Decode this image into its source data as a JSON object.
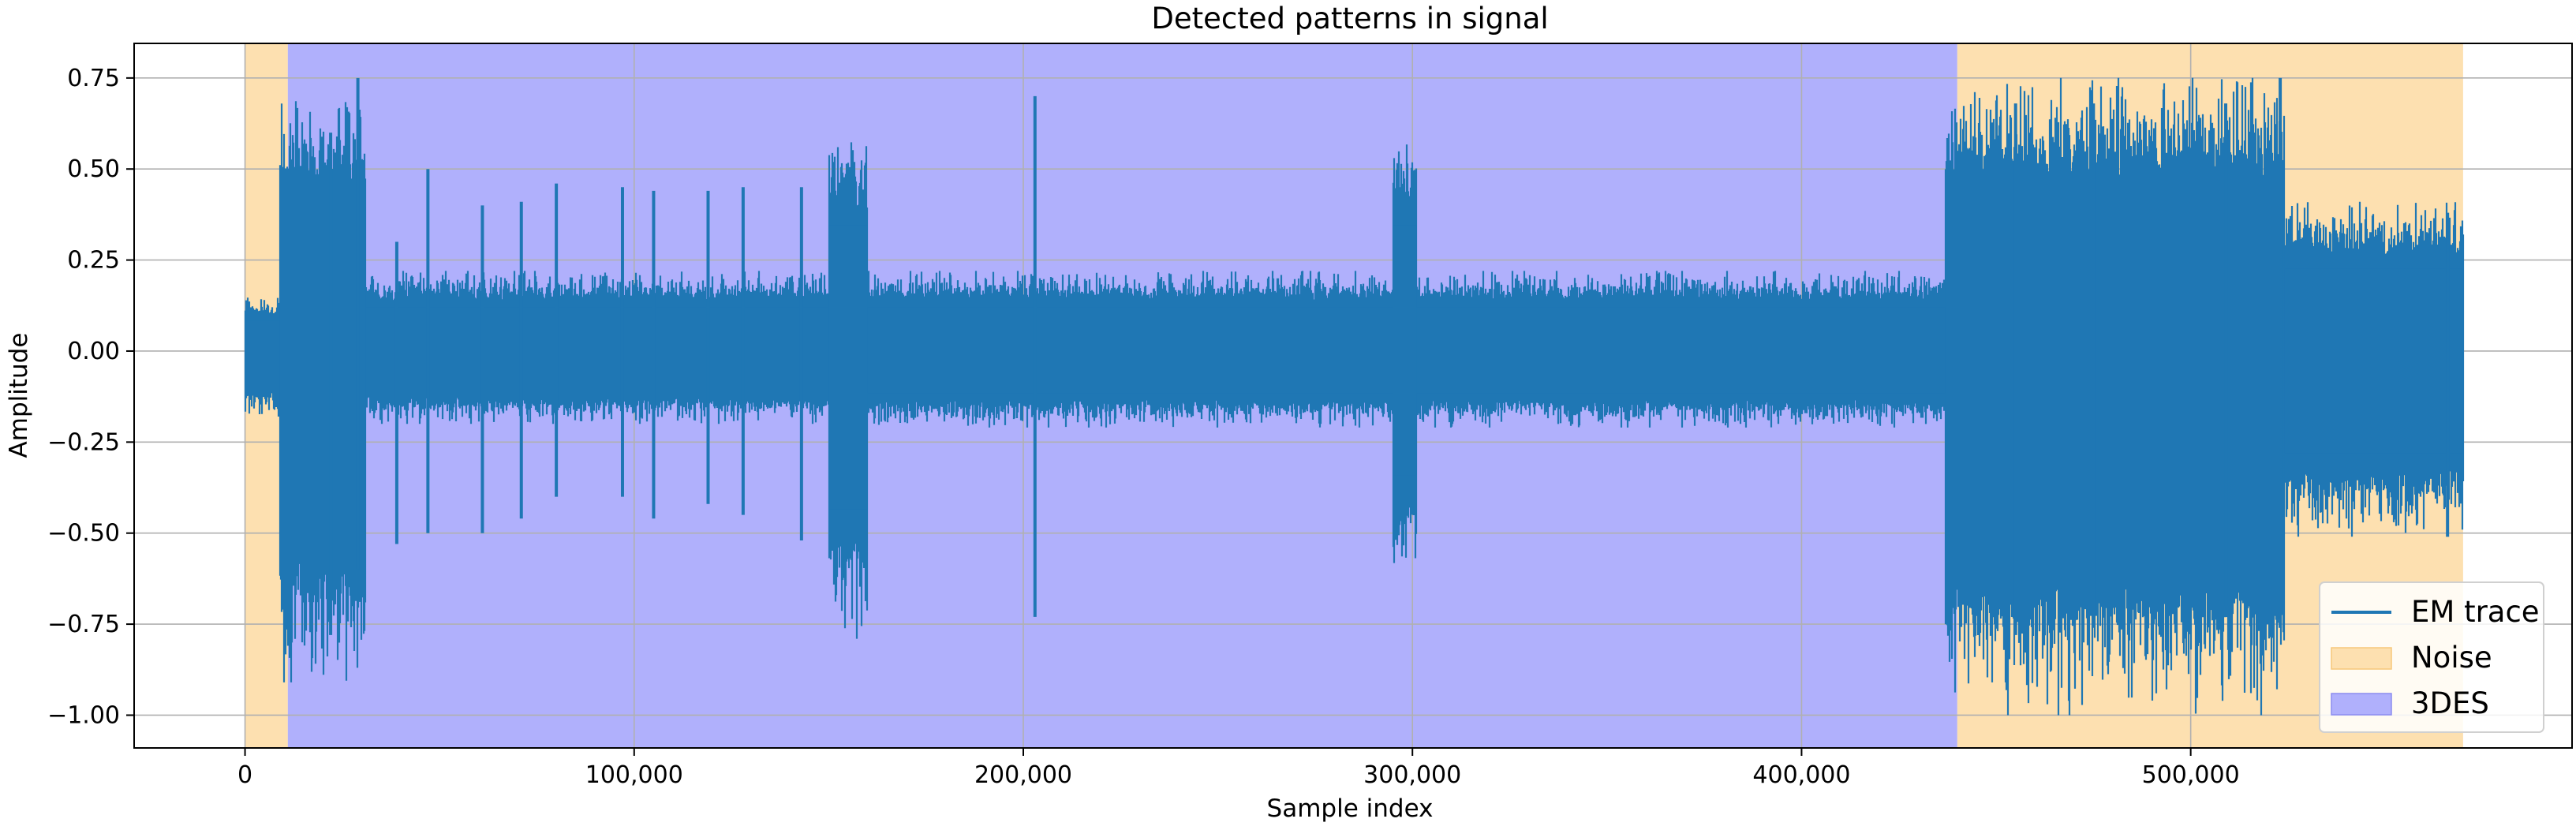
{
  "chart_data": {
    "type": "line",
    "title": "Detected patterns in signal",
    "xlabel": "Sample index",
    "ylabel": "Amplitude",
    "xlim": [
      -28500,
      598000
    ],
    "ylim": [
      -1.09,
      0.845
    ],
    "xticks": [
      0,
      100000,
      200000,
      300000,
      400000,
      500000
    ],
    "xtick_labels": [
      "0",
      "100,000",
      "200,000",
      "300,000",
      "400,000",
      "500,000"
    ],
    "yticks": [
      -1.0,
      -0.75,
      -0.5,
      -0.25,
      0.0,
      0.25,
      0.5,
      0.75
    ],
    "ytick_labels": [
      "−1.00",
      "−0.75",
      "−0.50",
      "−0.25",
      "0.00",
      "0.25",
      "0.50",
      "0.75"
    ],
    "grid": true,
    "legend_position": "lower-right",
    "series": [
      {
        "name": "EM trace",
        "kind": "line",
        "color": "#1f77b4",
        "segments": [
          {
            "x_start": 0,
            "x_end": 9000,
            "y_max": 0.15,
            "y_min": -0.18
          },
          {
            "x_start": 9000,
            "x_end": 31000,
            "y_max": 0.72,
            "y_min": -0.91
          },
          {
            "x_start": 31000,
            "x_end": 150000,
            "y_max": 0.22,
            "y_min": -0.2
          },
          {
            "x_start": 150000,
            "x_end": 160000,
            "y_max": 0.63,
            "y_min": -0.79
          },
          {
            "x_start": 160000,
            "x_end": 295000,
            "y_max": 0.22,
            "y_min": -0.21
          },
          {
            "x_start": 295000,
            "x_end": 301000,
            "y_max": 0.63,
            "y_min": -0.62
          },
          {
            "x_start": 301000,
            "x_end": 437000,
            "y_max": 0.22,
            "y_min": -0.21
          },
          {
            "x_start": 437000,
            "x_end": 524000,
            "y_max": 0.75,
            "y_min": -1.0
          },
          {
            "x_start": 524000,
            "x_end": 570000,
            "y_max": 0.41,
            "y_min": -0.51
          }
        ],
        "spikes": [
          {
            "x": 22000,
            "y_max": 0.6,
            "y_min": -0.78
          },
          {
            "x": 29000,
            "y_max": 0.75,
            "y_min": -0.6
          },
          {
            "x": 39000,
            "y_max": 0.3,
            "y_min": -0.53
          },
          {
            "x": 47000,
            "y_max": 0.5,
            "y_min": -0.5
          },
          {
            "x": 61000,
            "y_max": 0.4,
            "y_min": -0.5
          },
          {
            "x": 71000,
            "y_max": 0.41,
            "y_min": -0.46
          },
          {
            "x": 80000,
            "y_max": 0.46,
            "y_min": -0.4
          },
          {
            "x": 97000,
            "y_max": 0.45,
            "y_min": -0.4
          },
          {
            "x": 105000,
            "y_max": 0.44,
            "y_min": -0.46
          },
          {
            "x": 119000,
            "y_max": 0.44,
            "y_min": -0.42
          },
          {
            "x": 128000,
            "y_max": 0.45,
            "y_min": -0.45
          },
          {
            "x": 143000,
            "y_max": 0.45,
            "y_min": -0.52
          },
          {
            "x": 203000,
            "y_max": 0.7,
            "y_min": -0.73
          },
          {
            "x": 455000,
            "y_max": 0.68,
            "y_min": -0.78
          },
          {
            "x": 475000,
            "y_max": 0.68,
            "y_min": -0.76
          },
          {
            "x": 509000,
            "y_max": 0.68,
            "y_min": -0.7
          },
          {
            "x": 523000,
            "y_max": 0.75,
            "y_min": -0.76
          },
          {
            "x": 566000,
            "y_max": 0.38,
            "y_min": -0.51
          }
        ]
      },
      {
        "name": "Noise",
        "kind": "span",
        "color": "#fde0b0",
        "spans": [
          [
            0,
            11000
          ],
          [
            440000,
            570000
          ]
        ]
      },
      {
        "name": "3DES",
        "kind": "span",
        "color": "#b0b0fc",
        "spans": [
          [
            11000,
            440000
          ]
        ]
      }
    ]
  }
}
